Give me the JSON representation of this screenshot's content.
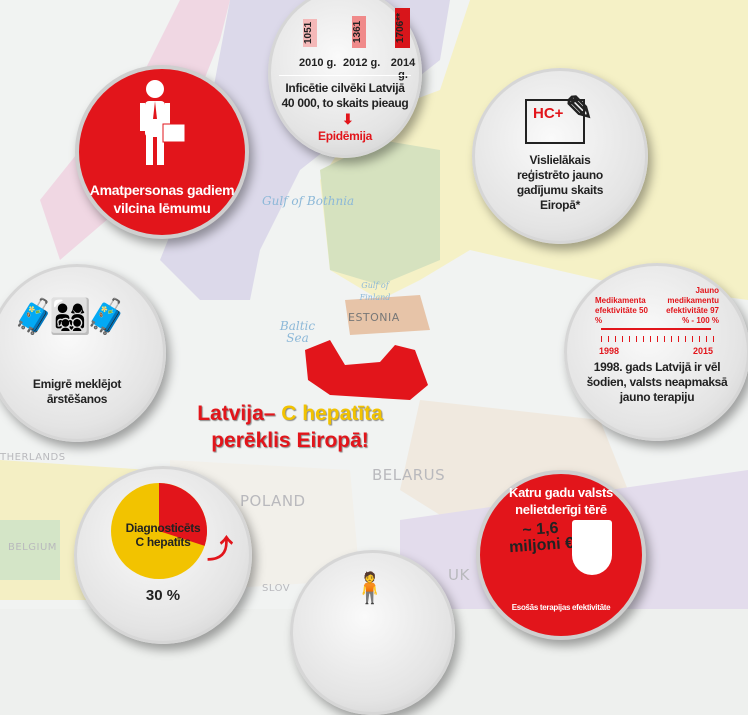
{
  "map_labels": {
    "gulf_bothnia": "Gulf of Bothnia",
    "gulf_finland": "Gulf of Finland",
    "baltic_sea": "Baltic Sea",
    "estonia": "ESTONIA",
    "netherlands": "THERLANDS",
    "belarus": "BELARUS",
    "poland": "POLAND",
    "belgium": "BELGIUM",
    "slovakia": "SLOV",
    "ukraine": "UK"
  },
  "title": {
    "part1": "Latvija– ",
    "part2": "C hepatīta",
    "line2": "perēklis Eiropā!"
  },
  "infected": {
    "bars": [
      {
        "value": "1051",
        "year": "2010 g."
      },
      {
        "value": "1361",
        "year": "2012 g."
      },
      {
        "value": "1706**",
        "year": "2014 g."
      }
    ],
    "text": "Inficētie cilvēki Latvijā 40 000, to skaits pieaug",
    "epidemic": "Epidēmija"
  },
  "officials": {
    "text": "Amatpersonas gadiem vilcina lēmumu"
  },
  "cases": {
    "badge": "HC+",
    "text": "Vislielākais reģistrēto jauno gadījumu skaits Eiropā*"
  },
  "emigrate": {
    "text": "Emigrē meklējot ārstēšanos"
  },
  "timeline": {
    "left_label": "Medikamenta efektivitāte 50 %",
    "right_label": "Jauno medikamentu efektivitāte 97 % - 100 %",
    "start": "1998",
    "end": "2015",
    "text": "1998. gads Latvijā ir vēl šodien, valsts neapmaksā jauno terapiju"
  },
  "diagnosed": {
    "label": "Diagnosticēts C hepatīts",
    "percent": "30 %",
    "fraction": 0.3
  },
  "waste": {
    "text": "Katru gadu valsts nelietderīgi tērē",
    "amount": "~ 1,6 miljoni €",
    "footer": "Esošās terapijas efektivitāte"
  },
  "colors": {
    "red": "#e2151b",
    "yellow": "#f2c300",
    "pink_bar": "#f4b8b8"
  }
}
